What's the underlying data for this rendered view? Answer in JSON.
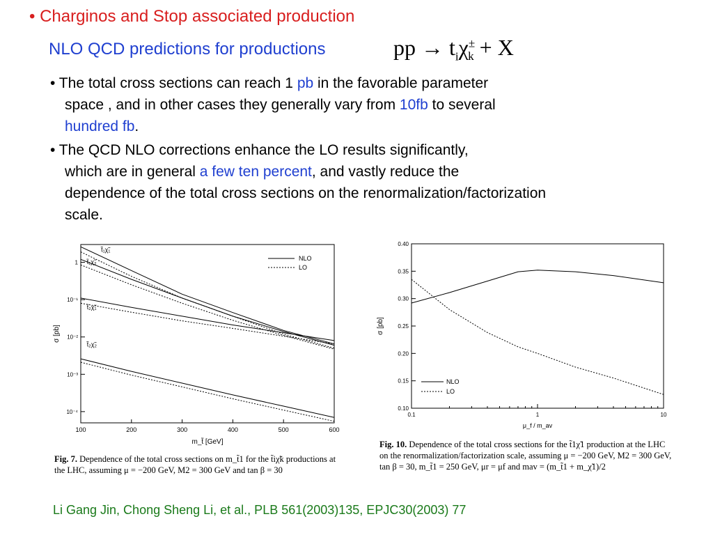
{
  "slide": {
    "title": "• Charginos and Stop associated production",
    "subtitle": "NLO QCD predictions for productions",
    "formula": {
      "lhs": "pp",
      "arrow": "→",
      "t": "t",
      "t_sub": "i",
      "chi": "χ",
      "chi_sub": "k",
      "chi_sup": "±",
      "plus": "+",
      "x": "X"
    },
    "bullet1": {
      "a": "• The total cross sections can reach 1 ",
      "pb": "pb",
      "b": " in the favorable parameter",
      "c": "space , and in other cases they generally vary from ",
      "tenfb": "10fb",
      "d": " to several",
      "hundredfb": "hundred fb",
      "e": "."
    },
    "bullet2": {
      "a": "• The QCD NLO corrections enhance  the LO results significantly,",
      "b": "which are in general ",
      "percent": "a few ten percent",
      "c": ", and vastly reduce the",
      "d": "dependence of the total cross sections on the renormalization/factorization",
      "e": "scale."
    },
    "fig7_caption": {
      "label": "Fig. 7.",
      "text": " Dependence of the total cross sections on m_t̃1 for the t̃iχ̃k productions at the LHC, assuming μ = −200 GeV, M2 = 300 GeV and tan β = 30"
    },
    "fig10_caption": {
      "label": "Fig. 10.",
      "text": " Dependence of the total cross sections for the t̃1χ̃1 production at the LHC on the renormalization/factorization scale, assuming μ = −200 GeV, M2 = 300 GeV, tan β = 30, m_t̃1 = 250 GeV, μr = μf and mav = (m_t̃1 + m_χ̃1)/2"
    },
    "citation": "Li Gang Jin, Chong Sheng Li, et al., PLB 561(2003)135,  EPJC30(2003) 77"
  },
  "chart_data": [
    {
      "type": "line",
      "xlabel": "m_t̃ [GeV]",
      "ylabel": "σ [pb]",
      "xlim": [
        100,
        600
      ],
      "ylim": [
        5e-05,
        3
      ],
      "log_y": true,
      "x_ticks": [
        100,
        200,
        300,
        400,
        500,
        600
      ],
      "y_tick_labels": [
        "1",
        "10⁻¹",
        "10⁻²",
        "10⁻³",
        "10⁻⁴"
      ],
      "y_tick_values": [
        1,
        0.1,
        0.01,
        0.001,
        0.0001
      ],
      "legend": {
        "position": "top-right",
        "entries": [
          "NLO",
          "LO"
        ]
      },
      "group_labels": [
        {
          "text": "t̃₁χ̃₁",
          "x": 140,
          "y": 1.9
        },
        {
          "text": "t̃₁χ̃₂",
          "x": 112,
          "y": 0.9
        },
        {
          "text": "t̃₂χ̃₁",
          "x": 112,
          "y": 0.055
        },
        {
          "text": "t̃₂χ̃₂",
          "x": 112,
          "y": 0.0055
        }
      ],
      "series": [
        {
          "process": "t1chi1",
          "kind": "NLO",
          "x": [
            100,
            200,
            300,
            400,
            500,
            600
          ],
          "y": [
            2.6,
            0.6,
            0.14,
            0.045,
            0.015,
            0.0065
          ]
        },
        {
          "process": "t1chi1",
          "kind": "LO",
          "x": [
            100,
            200,
            300,
            400,
            500,
            600
          ],
          "y": [
            1.9,
            0.42,
            0.11,
            0.036,
            0.012,
            0.005
          ]
        },
        {
          "process": "t1chi2",
          "kind": "NLO",
          "x": [
            100,
            200,
            300,
            400,
            500,
            600
          ],
          "y": [
            1.2,
            0.35,
            0.11,
            0.036,
            0.014,
            0.006
          ]
        },
        {
          "process": "t1chi2",
          "kind": "LO",
          "x": [
            100,
            200,
            300,
            400,
            500,
            600
          ],
          "y": [
            0.85,
            0.25,
            0.08,
            0.028,
            0.011,
            0.0047
          ]
        },
        {
          "process": "t2chi1",
          "kind": "NLO",
          "x": [
            100,
            200,
            300,
            400,
            500,
            600
          ],
          "y": [
            0.11,
            0.062,
            0.036,
            0.021,
            0.013,
            0.008
          ]
        },
        {
          "process": "t2chi1",
          "kind": "LO",
          "x": [
            100,
            200,
            300,
            400,
            500,
            600
          ],
          "y": [
            0.08,
            0.046,
            0.027,
            0.017,
            0.0105,
            0.0065
          ]
        },
        {
          "process": "t2chi2",
          "kind": "NLO",
          "x": [
            100,
            200,
            300,
            400,
            500,
            600
          ],
          "y": [
            0.0026,
            0.0012,
            0.00058,
            0.00028,
            0.00014,
            7e-05
          ]
        },
        {
          "process": "t2chi2",
          "kind": "LO",
          "x": [
            100,
            200,
            300,
            400,
            500,
            600
          ],
          "y": [
            0.0021,
            0.00095,
            0.00046,
            0.00022,
            0.00011,
            5.5e-05
          ]
        }
      ]
    },
    {
      "type": "line",
      "xlabel": "μ_f / m_av",
      "ylabel": "σ [pb]",
      "xlim": [
        0.1,
        10
      ],
      "ylim": [
        0.1,
        0.4
      ],
      "log_x": true,
      "x_tick_labels": [
        "0.1",
        "1",
        "10"
      ],
      "y_ticks": [
        0.1,
        0.15,
        0.2,
        0.25,
        0.3,
        0.35,
        0.4
      ],
      "y_tick_labels": [
        "0.10",
        "0.15",
        "0.20",
        "0.25",
        "0.30",
        "0.35",
        "0.40"
      ],
      "legend": {
        "position": "bottom-left",
        "entries": [
          "NLO",
          "LO"
        ]
      },
      "series": [
        {
          "kind": "NLO",
          "x": [
            0.1,
            0.2,
            0.4,
            0.7,
            1.0,
            2.0,
            4.0,
            10.0
          ],
          "y": [
            0.292,
            0.311,
            0.332,
            0.349,
            0.352,
            0.349,
            0.342,
            0.329
          ]
        },
        {
          "kind": "LO",
          "x": [
            0.1,
            0.2,
            0.4,
            0.7,
            1.0,
            2.0,
            4.0,
            10.0
          ],
          "y": [
            0.335,
            0.28,
            0.238,
            0.212,
            0.2,
            0.175,
            0.155,
            0.125
          ]
        }
      ]
    }
  ]
}
